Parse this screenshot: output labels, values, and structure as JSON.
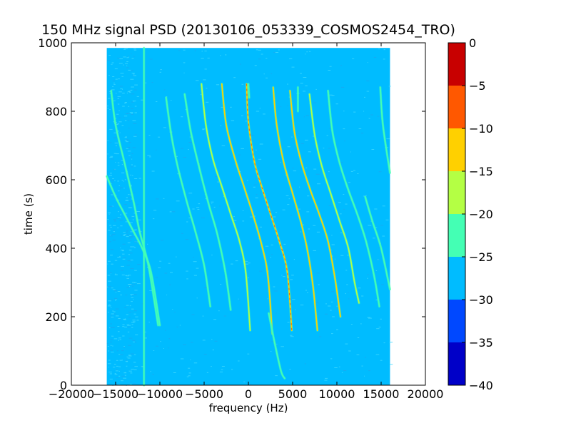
{
  "chart_data": {
    "type": "heatmap",
    "title": "150 MHz signal PSD (20130106_053339_COSMOS2454_TRO)",
    "xlabel": "frequency (Hz)",
    "ylabel": "time (s)",
    "xlim": [
      -20000,
      20000
    ],
    "ylim": [
      0,
      1000
    ],
    "x_ticks": [
      -20000,
      -15000,
      -10000,
      -5000,
      0,
      5000,
      10000,
      15000,
      20000
    ],
    "x_tick_labels": [
      "−20000",
      "−15000",
      "−10000",
      "−5000",
      "0",
      "5000",
      "10000",
      "15000",
      "20000"
    ],
    "y_ticks": [
      0,
      200,
      400,
      600,
      800,
      1000
    ],
    "y_tick_labels": [
      "0",
      "200",
      "400",
      "600",
      "800",
      "1000"
    ],
    "data_extent": {
      "x": [
        -16000,
        16000
      ],
      "y": [
        0,
        985
      ]
    },
    "background_level": -27.5,
    "colorbar": {
      "min": -40,
      "max": 0,
      "ticks": [
        0,
        -5,
        -10,
        -15,
        -20,
        -25,
        -30,
        -35,
        -40
      ],
      "tick_labels": [
        "0",
        "−5",
        "−10",
        "−15",
        "−20",
        "−25",
        "−30",
        "−35",
        "−40"
      ],
      "bands": [
        {
          "from": -40,
          "to": -35,
          "color": "#0000c8"
        },
        {
          "from": -35,
          "to": -30,
          "color": "#0048ff"
        },
        {
          "from": -30,
          "to": -25,
          "color": "#00bcff"
        },
        {
          "from": -25,
          "to": -20,
          "color": "#44ffb4"
        },
        {
          "from": -20,
          "to": -15,
          "color": "#b4ff44"
        },
        {
          "from": -15,
          "to": -10,
          "color": "#ffd000"
        },
        {
          "from": -10,
          "to": -5,
          "color": "#ff5800"
        },
        {
          "from": -5,
          "to": 0,
          "color": "#c80000"
        }
      ]
    },
    "traces": [
      {
        "level": -22,
        "points": [
          [
            -15500,
            860
          ],
          [
            -15000,
            760
          ],
          [
            -14000,
            650
          ],
          [
            -13000,
            540
          ],
          [
            -12300,
            450
          ],
          [
            -11300,
            350
          ],
          [
            -10200,
            175
          ]
        ]
      },
      {
        "level": -22,
        "points": [
          [
            -16000,
            610
          ],
          [
            -15000,
            550
          ],
          [
            -14000,
            500
          ],
          [
            -13000,
            450
          ],
          [
            -12000,
            400
          ],
          [
            -11000,
            330
          ],
          [
            -10000,
            175
          ]
        ]
      },
      {
        "level": -20,
        "points": [
          [
            -9300,
            840
          ],
          [
            -8700,
            730
          ],
          [
            -8000,
            640
          ],
          [
            -7000,
            540
          ],
          [
            -6000,
            450
          ],
          [
            -5000,
            350
          ],
          [
            -4300,
            230
          ]
        ]
      },
      {
        "level": -20,
        "points": [
          [
            -7200,
            850
          ],
          [
            -6500,
            740
          ],
          [
            -5500,
            630
          ],
          [
            -4500,
            530
          ],
          [
            -3500,
            440
          ],
          [
            -2600,
            330
          ],
          [
            -2000,
            220
          ]
        ]
      },
      {
        "level": -18,
        "points": [
          [
            -5300,
            880
          ],
          [
            -4800,
            760
          ],
          [
            -4000,
            660
          ],
          [
            -3000,
            580
          ],
          [
            -2000,
            500
          ],
          [
            -1000,
            420
          ],
          [
            -300,
            330
          ],
          [
            200,
            160
          ]
        ]
      },
      {
        "level": -12,
        "points": [
          [
            -3000,
            880
          ],
          [
            -2500,
            760
          ],
          [
            -1500,
            660
          ],
          [
            -500,
            580
          ],
          [
            500,
            500
          ],
          [
            1500,
            410
          ],
          [
            2200,
            320
          ],
          [
            2700,
            150
          ]
        ]
      },
      {
        "level": -10,
        "points": [
          [
            -200,
            880
          ],
          [
            0,
            770
          ],
          [
            700,
            650
          ],
          [
            1500,
            580
          ],
          [
            2500,
            500
          ],
          [
            3500,
            420
          ],
          [
            4400,
            330
          ],
          [
            4900,
            160
          ]
        ]
      },
      {
        "level": -12,
        "points": [
          [
            2800,
            870
          ],
          [
            3200,
            760
          ],
          [
            4000,
            650
          ],
          [
            5000,
            560
          ],
          [
            6000,
            470
          ],
          [
            6700,
            390
          ],
          [
            7300,
            290
          ],
          [
            7800,
            160
          ]
        ]
      },
      {
        "level": -14,
        "points": [
          [
            4700,
            860
          ],
          [
            5200,
            740
          ],
          [
            6000,
            650
          ],
          [
            7000,
            570
          ],
          [
            8000,
            500
          ],
          [
            9000,
            420
          ],
          [
            9800,
            310
          ],
          [
            10400,
            200
          ]
        ]
      },
      {
        "level": -18,
        "points": [
          [
            6900,
            850
          ],
          [
            7500,
            730
          ],
          [
            8300,
            640
          ],
          [
            9300,
            560
          ],
          [
            10300,
            480
          ],
          [
            11300,
            400
          ],
          [
            12000,
            300
          ],
          [
            12500,
            240
          ]
        ]
      },
      {
        "level": -20,
        "points": [
          [
            9000,
            860
          ],
          [
            9500,
            740
          ],
          [
            10300,
            650
          ],
          [
            11300,
            570
          ],
          [
            12300,
            500
          ],
          [
            13300,
            420
          ],
          [
            14200,
            320
          ],
          [
            14800,
            230
          ]
        ]
      },
      {
        "level": -20,
        "points": [
          [
            13200,
            550
          ],
          [
            14000,
            480
          ],
          [
            15000,
            400
          ],
          [
            16000,
            280
          ]
        ]
      },
      {
        "level": -22,
        "points": [
          [
            14900,
            870
          ],
          [
            15200,
            760
          ],
          [
            16000,
            620
          ]
        ]
      },
      {
        "level": -22,
        "points": [
          [
            0,
            880
          ],
          [
            100,
            840
          ]
        ]
      },
      {
        "level": -22,
        "points": [
          [
            2300,
            210
          ],
          [
            3000,
            120
          ],
          [
            3700,
            40
          ],
          [
            4100,
            20
          ]
        ]
      },
      {
        "level": -22,
        "points": [
          [
            -11800,
            985
          ],
          [
            -11800,
            0
          ]
        ],
        "vertical": true
      },
      {
        "level": -22,
        "points": [
          [
            5600,
            870
          ],
          [
            5600,
            800
          ]
        ],
        "vertical": true
      }
    ]
  }
}
